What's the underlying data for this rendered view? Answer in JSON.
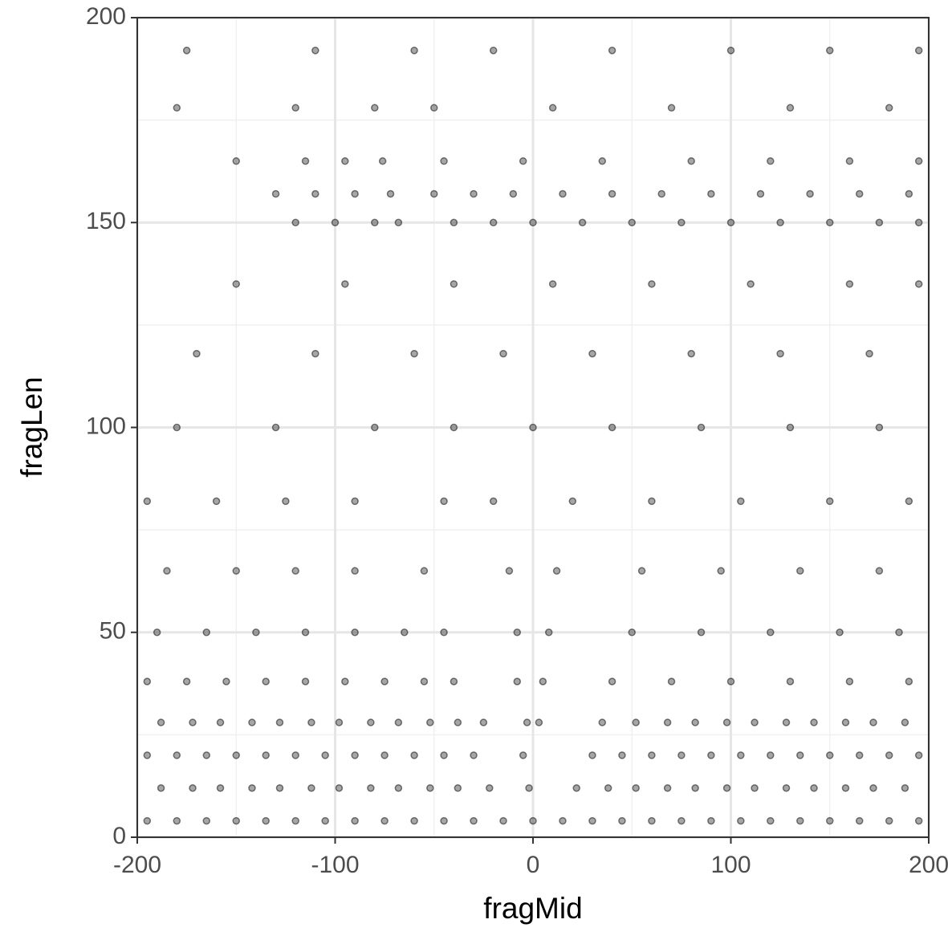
{
  "chart_data": {
    "type": "scatter",
    "xlabel": "fragMid",
    "ylabel": "fragLen",
    "xlim": [
      -200,
      200
    ],
    "ylim": [
      0,
      200
    ],
    "xticks": [
      -200,
      -100,
      0,
      100,
      200
    ],
    "yticks": [
      0,
      50,
      100,
      150,
      200
    ],
    "xminor": [
      -150,
      -50,
      50,
      150
    ],
    "yminor": [
      25,
      75,
      125,
      175
    ],
    "grid": true,
    "color": "#000000",
    "x": [
      -195,
      -180,
      -165,
      -150,
      -135,
      -120,
      -105,
      -90,
      -75,
      -60,
      -45,
      -30,
      -15,
      0,
      15,
      30,
      45,
      60,
      75,
      90,
      105,
      120,
      135,
      150,
      165,
      180,
      195,
      -188,
      -172,
      -158,
      -142,
      -128,
      -112,
      -98,
      -82,
      -68,
      -52,
      -38,
      -22,
      -2,
      22,
      38,
      52,
      68,
      82,
      98,
      112,
      128,
      142,
      158,
      172,
      188,
      -195,
      -180,
      -165,
      -150,
      -135,
      -120,
      -105,
      -90,
      -75,
      -60,
      -45,
      -30,
      -5,
      30,
      45,
      60,
      75,
      90,
      105,
      120,
      135,
      150,
      165,
      180,
      195,
      -188,
      -172,
      -158,
      -142,
      -128,
      -112,
      -98,
      -82,
      -68,
      -52,
      -38,
      -25,
      -3,
      3,
      35,
      52,
      68,
      82,
      98,
      112,
      128,
      142,
      158,
      172,
      188,
      -195,
      -175,
      -155,
      -135,
      -115,
      -95,
      -75,
      -55,
      -40,
      -8,
      5,
      40,
      70,
      100,
      130,
      160,
      190,
      -190,
      -165,
      -140,
      -115,
      -90,
      -65,
      -45,
      -8,
      8,
      50,
      85,
      120,
      155,
      185,
      -185,
      -150,
      -120,
      -90,
      -55,
      -12,
      12,
      55,
      95,
      135,
      175,
      -195,
      -160,
      -125,
      -90,
      -45,
      -20,
      20,
      60,
      105,
      150,
      190,
      -180,
      -130,
      -80,
      -40,
      0,
      40,
      85,
      130,
      175,
      -170,
      -110,
      -60,
      -15,
      30,
      80,
      125,
      170,
      -150,
      -95,
      -40,
      10,
      60,
      110,
      160,
      195,
      -120,
      -100,
      -80,
      -68,
      -40,
      -20,
      0,
      25,
      50,
      75,
      100,
      125,
      150,
      175,
      195,
      -130,
      -110,
      -90,
      -72,
      -50,
      -30,
      -10,
      15,
      40,
      65,
      90,
      115,
      140,
      165,
      190,
      -150,
      -115,
      -95,
      -76,
      -45,
      -5,
      35,
      80,
      120,
      160,
      195,
      -180,
      -120,
      -80,
      -50,
      10,
      70,
      130,
      180,
      -175,
      -110,
      -60,
      -20,
      40,
      100,
      150,
      195
    ],
    "values": [
      4,
      4,
      4,
      4,
      4,
      4,
      4,
      4,
      4,
      4,
      4,
      4,
      4,
      4,
      4,
      4,
      4,
      4,
      4,
      4,
      4,
      4,
      4,
      4,
      4,
      4,
      4,
      12,
      12,
      12,
      12,
      12,
      12,
      12,
      12,
      12,
      12,
      12,
      12,
      12,
      12,
      12,
      12,
      12,
      12,
      12,
      12,
      12,
      12,
      12,
      12,
      12,
      20,
      20,
      20,
      20,
      20,
      20,
      20,
      20,
      20,
      20,
      20,
      20,
      20,
      20,
      20,
      20,
      20,
      20,
      20,
      20,
      20,
      20,
      20,
      20,
      20,
      28,
      28,
      28,
      28,
      28,
      28,
      28,
      28,
      28,
      28,
      28,
      28,
      28,
      28,
      28,
      28,
      28,
      28,
      28,
      28,
      28,
      28,
      28,
      28,
      28,
      38,
      38,
      38,
      38,
      38,
      38,
      38,
      38,
      38,
      38,
      38,
      38,
      38,
      38,
      38,
      38,
      38,
      50,
      50,
      50,
      50,
      50,
      50,
      50,
      50,
      50,
      50,
      50,
      50,
      50,
      50,
      65,
      65,
      65,
      65,
      65,
      65,
      65,
      65,
      65,
      65,
      65,
      82,
      82,
      82,
      82,
      82,
      82,
      82,
      82,
      82,
      82,
      82,
      100,
      100,
      100,
      100,
      100,
      100,
      100,
      100,
      100,
      118,
      118,
      118,
      118,
      118,
      118,
      118,
      118,
      135,
      135,
      135,
      135,
      135,
      135,
      135,
      135,
      150,
      150,
      150,
      150,
      150,
      150,
      150,
      150,
      150,
      150,
      150,
      150,
      150,
      150,
      150,
      157,
      157,
      157,
      157,
      157,
      157,
      157,
      157,
      157,
      157,
      157,
      157,
      157,
      157,
      157,
      165,
      165,
      165,
      165,
      165,
      165,
      165,
      165,
      165,
      165,
      165,
      178,
      178,
      178,
      178,
      178,
      178,
      178,
      178,
      192,
      192,
      192,
      192,
      192,
      192,
      192,
      192
    ]
  }
}
